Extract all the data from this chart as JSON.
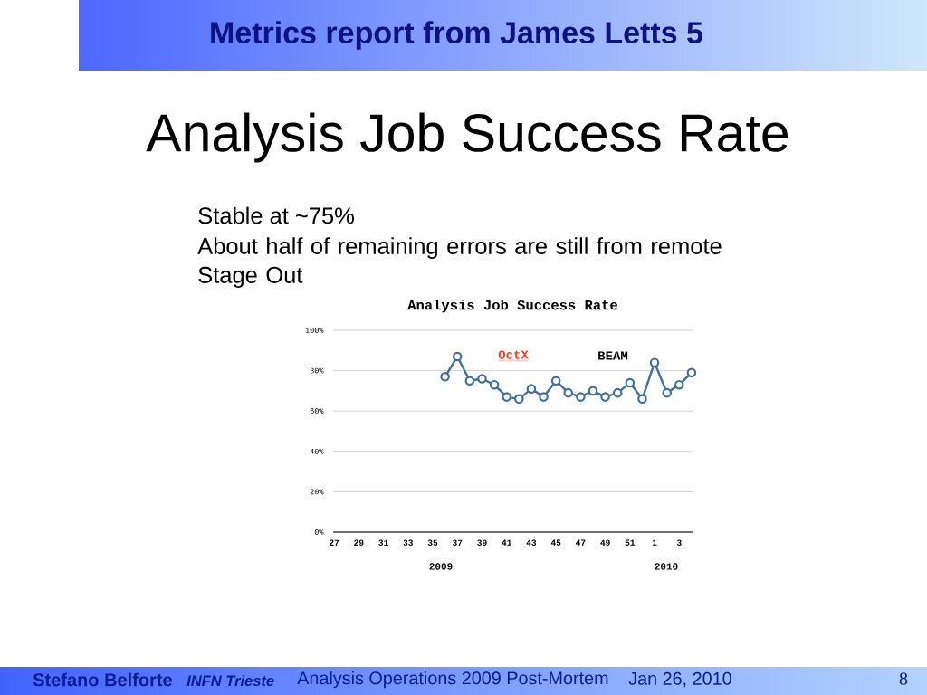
{
  "chart_data": {
    "type": "line",
    "title": "Analysis Job Success Rate",
    "categories": [
      "27",
      null,
      "29",
      null,
      "31",
      null,
      "33",
      null,
      "35",
      null,
      "37",
      null,
      "39",
      null,
      "41",
      null,
      "43",
      null,
      "45",
      null,
      "47",
      null,
      "49",
      null,
      "51",
      null,
      "1",
      null,
      "3",
      null
    ],
    "values": [
      null,
      null,
      null,
      null,
      null,
      null,
      null,
      null,
      null,
      77,
      87,
      75,
      76,
      73,
      67,
      66,
      71,
      67,
      75,
      69,
      67,
      70,
      67,
      69,
      74,
      66,
      84,
      69,
      73,
      79
    ],
    "color": "#41709f",
    "ylim": [
      0,
      100
    ],
    "yticks": [
      {
        "value": 0,
        "label": "0%"
      },
      {
        "value": 20,
        "label": "20%"
      },
      {
        "value": 40,
        "label": "40%"
      },
      {
        "value": 60,
        "label": "60%"
      },
      {
        "value": 80,
        "label": "80%"
      },
      {
        "value": 100,
        "label": "100%"
      }
    ],
    "grid": "y",
    "marker": "circle",
    "line_style": "solid",
    "annotations": [
      "Metrics report from James Letts 5",
      "Analysis Job Success Rate",
      "Stable at ~75%",
      "About half of remaining errors are still from remote Stage Out",
      "OctX",
      "BEAM",
      "2009",
      "2010",
      "Stefano Belforte",
      "INFN Trieste",
      "Analysis Operations 2009 Post-Mortem",
      "Jan 26, 2010",
      "8"
    ]
  }
}
